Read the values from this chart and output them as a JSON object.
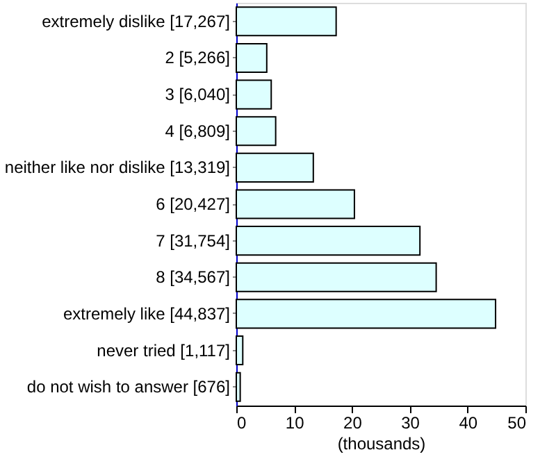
{
  "chart_data": {
    "type": "bar",
    "orientation": "horizontal",
    "xlabel": "(thousands)",
    "categories": [
      "extremely dislike [17,267]",
      "2 [5,266]",
      "3 [6,040]",
      "4 [6,809]",
      "neither like nor dislike [13,319]",
      "6 [20,427]",
      "7 [31,754]",
      "8 [34,567]",
      "extremely like [44,837]",
      "never tried [1,117]",
      "do not wish to answer [676]"
    ],
    "values": [
      17.267,
      5.266,
      6.04,
      6.809,
      13.319,
      20.427,
      31.754,
      34.567,
      44.837,
      1.117,
      0.676
    ],
    "color": "#ddffff",
    "xlim": [
      0,
      50
    ],
    "xticks": [
      0,
      10,
      20,
      30,
      40,
      50
    ],
    "grid": false
  }
}
